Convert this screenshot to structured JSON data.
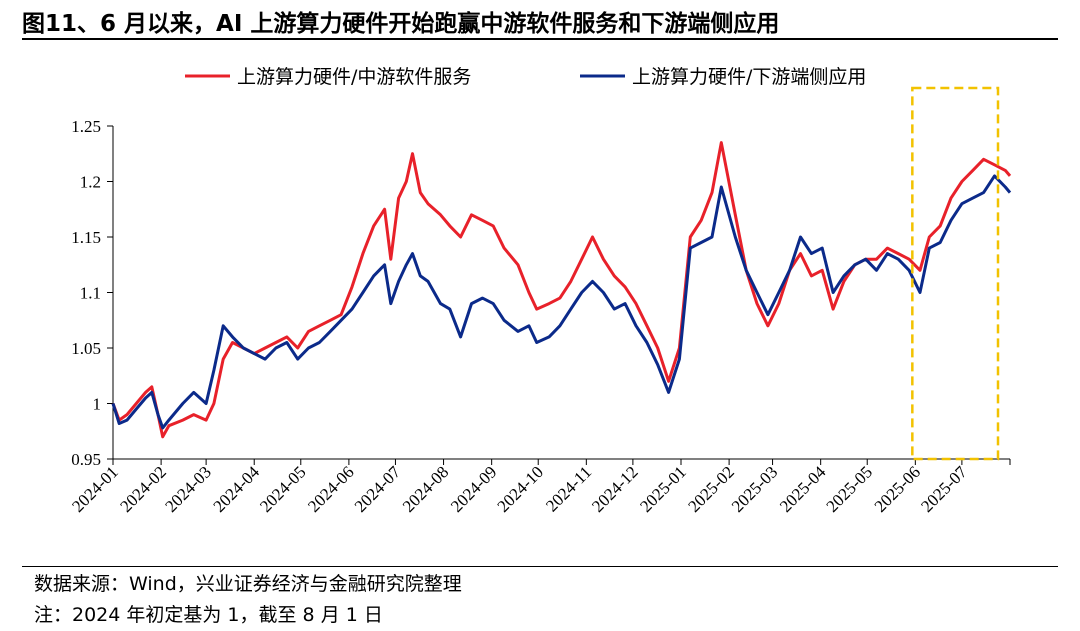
{
  "header": {
    "title": "图11、6 月以来，AI 上游算力硬件开始跑赢中游软件服务和下游端侧应用"
  },
  "footer": {
    "source": "数据来源：Wind，兴业证券经济与金融研究院整理",
    "note": "注：2024 年初定基为 1，截至 8 月 1 日"
  },
  "chart_data": {
    "type": "line",
    "title": "",
    "xlabel": "",
    "ylabel": "",
    "x_range": [
      "2024-01-01",
      "2025-08-01"
    ],
    "ylim": [
      0.95,
      1.25
    ],
    "y_ticks": [
      "0.95",
      "1",
      "1.05",
      "1.1",
      "1.15",
      "1.2",
      "1.25"
    ],
    "x_ticks": [
      "2024-01",
      "2024-02",
      "2024-03",
      "2024-04",
      "2024-05",
      "2024-06",
      "2024-07",
      "2024-08",
      "2024-09",
      "2024-10",
      "2024-11",
      "2024-12",
      "2025-01",
      "2025-02",
      "2025-03",
      "2025-04",
      "2025-05",
      "2025-06",
      "2025-07"
    ],
    "grid": false,
    "legend_position": "top",
    "highlight_box": {
      "x_start": "2025-06-01",
      "x_end": "2025-08-01",
      "color": "#f2c200"
    },
    "series": [
      {
        "name": "上游算力硬件/中游软件服务",
        "color": "#e8212a",
        "points": [
          [
            "2024-01-01",
            1.0
          ],
          [
            "2024-01-05",
            0.985
          ],
          [
            "2024-01-10",
            0.99
          ],
          [
            "2024-01-16",
            1.0
          ],
          [
            "2024-01-22",
            1.01
          ],
          [
            "2024-01-26",
            1.015
          ],
          [
            "2024-01-30",
            0.99
          ],
          [
            "2024-02-02",
            0.97
          ],
          [
            "2024-02-06",
            0.98
          ],
          [
            "2024-02-15",
            0.985
          ],
          [
            "2024-02-22",
            0.99
          ],
          [
            "2024-03-01",
            0.985
          ],
          [
            "2024-03-06",
            1.0
          ],
          [
            "2024-03-12",
            1.04
          ],
          [
            "2024-03-18",
            1.055
          ],
          [
            "2024-03-25",
            1.05
          ],
          [
            "2024-04-01",
            1.045
          ],
          [
            "2024-04-08",
            1.05
          ],
          [
            "2024-04-15",
            1.055
          ],
          [
            "2024-04-22",
            1.06
          ],
          [
            "2024-04-29",
            1.05
          ],
          [
            "2024-05-06",
            1.065
          ],
          [
            "2024-05-13",
            1.07
          ],
          [
            "2024-05-20",
            1.075
          ],
          [
            "2024-05-27",
            1.08
          ],
          [
            "2024-06-03",
            1.105
          ],
          [
            "2024-06-10",
            1.135
          ],
          [
            "2024-06-17",
            1.16
          ],
          [
            "2024-06-24",
            1.175
          ],
          [
            "2024-06-28",
            1.13
          ],
          [
            "2024-07-03",
            1.185
          ],
          [
            "2024-07-08",
            1.2
          ],
          [
            "2024-07-12",
            1.225
          ],
          [
            "2024-07-17",
            1.19
          ],
          [
            "2024-07-22",
            1.18
          ],
          [
            "2024-07-30",
            1.17
          ],
          [
            "2024-08-05",
            1.16
          ],
          [
            "2024-08-12",
            1.15
          ],
          [
            "2024-08-19",
            1.17
          ],
          [
            "2024-08-26",
            1.165
          ],
          [
            "2024-09-02",
            1.16
          ],
          [
            "2024-09-09",
            1.14
          ],
          [
            "2024-09-18",
            1.125
          ],
          [
            "2024-09-25",
            1.1
          ],
          [
            "2024-09-30",
            1.085
          ],
          [
            "2024-10-08",
            1.09
          ],
          [
            "2024-10-15",
            1.095
          ],
          [
            "2024-10-22",
            1.11
          ],
          [
            "2024-10-29",
            1.13
          ],
          [
            "2024-11-05",
            1.15
          ],
          [
            "2024-11-12",
            1.13
          ],
          [
            "2024-11-19",
            1.115
          ],
          [
            "2024-11-26",
            1.105
          ],
          [
            "2024-12-03",
            1.09
          ],
          [
            "2024-12-10",
            1.07
          ],
          [
            "2024-12-17",
            1.05
          ],
          [
            "2024-12-24",
            1.02
          ],
          [
            "2024-12-31",
            1.05
          ],
          [
            "2025-01-07",
            1.15
          ],
          [
            "2025-01-14",
            1.165
          ],
          [
            "2025-01-21",
            1.19
          ],
          [
            "2025-01-27",
            1.235
          ],
          [
            "2025-02-05",
            1.17
          ],
          [
            "2025-02-12",
            1.12
          ],
          [
            "2025-02-19",
            1.09
          ],
          [
            "2025-02-26",
            1.07
          ],
          [
            "2025-03-05",
            1.09
          ],
          [
            "2025-03-12",
            1.12
          ],
          [
            "2025-03-19",
            1.135
          ],
          [
            "2025-03-26",
            1.115
          ],
          [
            "2025-04-02",
            1.12
          ],
          [
            "2025-04-09",
            1.085
          ],
          [
            "2025-04-16",
            1.11
          ],
          [
            "2025-04-23",
            1.125
          ],
          [
            "2025-04-30",
            1.13
          ],
          [
            "2025-05-07",
            1.13
          ],
          [
            "2025-05-14",
            1.14
          ],
          [
            "2025-05-21",
            1.135
          ],
          [
            "2025-05-28",
            1.13
          ],
          [
            "2025-06-04",
            1.12
          ],
          [
            "2025-06-10",
            1.15
          ],
          [
            "2025-06-17",
            1.16
          ],
          [
            "2025-06-24",
            1.185
          ],
          [
            "2025-07-01",
            1.2
          ],
          [
            "2025-07-08",
            1.21
          ],
          [
            "2025-07-15",
            1.22
          ],
          [
            "2025-07-22",
            1.215
          ],
          [
            "2025-07-29",
            1.21
          ],
          [
            "2025-08-01",
            1.205
          ]
        ]
      },
      {
        "name": "上游算力硬件/下游端侧应用",
        "color": "#0b2a8a",
        "points": [
          [
            "2024-01-01",
            1.0
          ],
          [
            "2024-01-05",
            0.982
          ],
          [
            "2024-01-10",
            0.985
          ],
          [
            "2024-01-16",
            0.995
          ],
          [
            "2024-01-22",
            1.005
          ],
          [
            "2024-01-26",
            1.01
          ],
          [
            "2024-01-30",
            0.99
          ],
          [
            "2024-02-02",
            0.978
          ],
          [
            "2024-02-06",
            0.985
          ],
          [
            "2024-02-15",
            1.0
          ],
          [
            "2024-02-22",
            1.01
          ],
          [
            "2024-03-01",
            1.0
          ],
          [
            "2024-03-06",
            1.03
          ],
          [
            "2024-03-12",
            1.07
          ],
          [
            "2024-03-18",
            1.06
          ],
          [
            "2024-03-25",
            1.05
          ],
          [
            "2024-04-01",
            1.045
          ],
          [
            "2024-04-08",
            1.04
          ],
          [
            "2024-04-15",
            1.05
          ],
          [
            "2024-04-22",
            1.055
          ],
          [
            "2024-04-29",
            1.04
          ],
          [
            "2024-05-06",
            1.05
          ],
          [
            "2024-05-13",
            1.055
          ],
          [
            "2024-05-20",
            1.065
          ],
          [
            "2024-05-27",
            1.075
          ],
          [
            "2024-06-03",
            1.085
          ],
          [
            "2024-06-10",
            1.1
          ],
          [
            "2024-06-17",
            1.115
          ],
          [
            "2024-06-24",
            1.125
          ],
          [
            "2024-06-28",
            1.09
          ],
          [
            "2024-07-03",
            1.11
          ],
          [
            "2024-07-08",
            1.125
          ],
          [
            "2024-07-12",
            1.135
          ],
          [
            "2024-07-17",
            1.115
          ],
          [
            "2024-07-22",
            1.11
          ],
          [
            "2024-07-30",
            1.09
          ],
          [
            "2024-08-05",
            1.085
          ],
          [
            "2024-08-12",
            1.06
          ],
          [
            "2024-08-19",
            1.09
          ],
          [
            "2024-08-26",
            1.095
          ],
          [
            "2024-09-02",
            1.09
          ],
          [
            "2024-09-09",
            1.075
          ],
          [
            "2024-09-18",
            1.065
          ],
          [
            "2024-09-25",
            1.07
          ],
          [
            "2024-09-30",
            1.055
          ],
          [
            "2024-10-08",
            1.06
          ],
          [
            "2024-10-15",
            1.07
          ],
          [
            "2024-10-22",
            1.085
          ],
          [
            "2024-10-29",
            1.1
          ],
          [
            "2024-11-05",
            1.11
          ],
          [
            "2024-11-12",
            1.1
          ],
          [
            "2024-11-19",
            1.085
          ],
          [
            "2024-11-26",
            1.09
          ],
          [
            "2024-12-03",
            1.07
          ],
          [
            "2024-12-10",
            1.055
          ],
          [
            "2024-12-17",
            1.035
          ],
          [
            "2024-12-24",
            1.01
          ],
          [
            "2024-12-31",
            1.04
          ],
          [
            "2025-01-07",
            1.14
          ],
          [
            "2025-01-14",
            1.145
          ],
          [
            "2025-01-21",
            1.15
          ],
          [
            "2025-01-27",
            1.195
          ],
          [
            "2025-02-05",
            1.15
          ],
          [
            "2025-02-12",
            1.12
          ],
          [
            "2025-02-19",
            1.1
          ],
          [
            "2025-02-26",
            1.08
          ],
          [
            "2025-03-05",
            1.1
          ],
          [
            "2025-03-12",
            1.12
          ],
          [
            "2025-03-19",
            1.15
          ],
          [
            "2025-03-26",
            1.135
          ],
          [
            "2025-04-02",
            1.14
          ],
          [
            "2025-04-09",
            1.1
          ],
          [
            "2025-04-16",
            1.115
          ],
          [
            "2025-04-23",
            1.125
          ],
          [
            "2025-04-30",
            1.13
          ],
          [
            "2025-05-07",
            1.12
          ],
          [
            "2025-05-14",
            1.135
          ],
          [
            "2025-05-21",
            1.13
          ],
          [
            "2025-05-28",
            1.12
          ],
          [
            "2025-06-04",
            1.1
          ],
          [
            "2025-06-10",
            1.14
          ],
          [
            "2025-06-17",
            1.145
          ],
          [
            "2025-06-24",
            1.165
          ],
          [
            "2025-07-01",
            1.18
          ],
          [
            "2025-07-08",
            1.185
          ],
          [
            "2025-07-15",
            1.19
          ],
          [
            "2025-07-22",
            1.205
          ],
          [
            "2025-07-29",
            1.195
          ],
          [
            "2025-08-01",
            1.19
          ]
        ]
      }
    ]
  }
}
